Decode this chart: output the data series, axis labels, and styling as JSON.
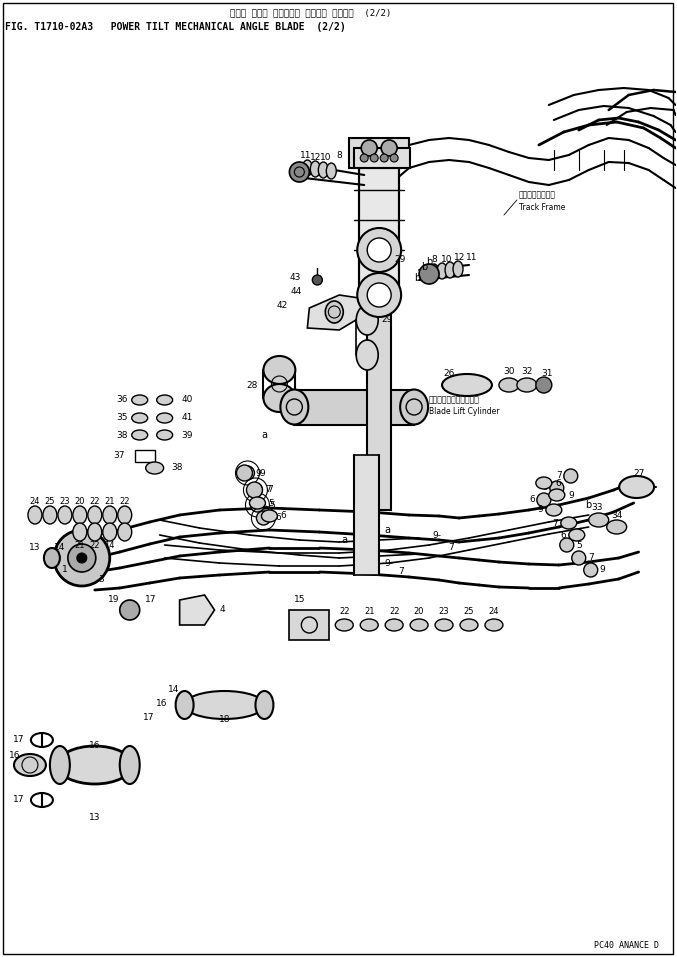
{
  "title_jp": "パワー チルト メカニカル アングル ブレード  (2/2)",
  "title_en": "FIG. T1710-02A3   POWER TILT MECHANICAL ANGLE BLADE  (2/2)",
  "footer": "PC40 ANANCE D",
  "bg_color": "#ffffff",
  "line_color": "#000000",
  "fig_width": 6.77,
  "fig_height": 9.57,
  "dpi": 100
}
